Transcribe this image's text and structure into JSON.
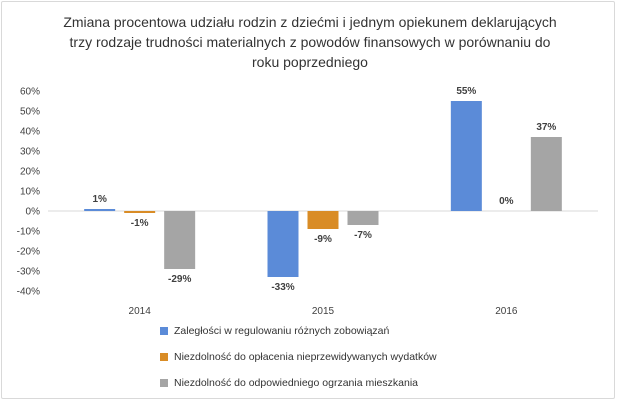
{
  "chart_data": {
    "type": "bar",
    "title": "Zmiana procentowa udziału rodzin z dziećmi i jednym opiekunem deklarujących trzy rodzaje trudności materialnych z powodów finansowych w porównaniu do roku poprzedniego",
    "categories": [
      "2014",
      "2015",
      "2016"
    ],
    "series": [
      {
        "name": "Zaległości w regulowaniu różnych zobowiązań",
        "values": [
          1,
          -33,
          55
        ],
        "labels": [
          "1%",
          "-33%",
          "55%"
        ],
        "color": "#5b8bd8"
      },
      {
        "name": "Niezdolność do opłacenia nieprzewidywanych wydatków",
        "values": [
          -1,
          -9,
          0
        ],
        "labels": [
          "-1%",
          "-9%",
          "0%"
        ],
        "color": "#d98c26"
      },
      {
        "name": "Niezdolność do odpowiedniego ogrzania mieszkania",
        "values": [
          -29,
          -7,
          37
        ],
        "labels": [
          "-29%",
          "-7%",
          "37%"
        ],
        "color": "#a5a5a5"
      }
    ],
    "yticks": [
      "60%",
      "50%",
      "40%",
      "30%",
      "20%",
      "10%",
      "0%",
      "-10%",
      "-20%",
      "-30%",
      "-40%"
    ],
    "ylim": [
      -40,
      60
    ],
    "grid": false,
    "legend_position": "bottom"
  }
}
